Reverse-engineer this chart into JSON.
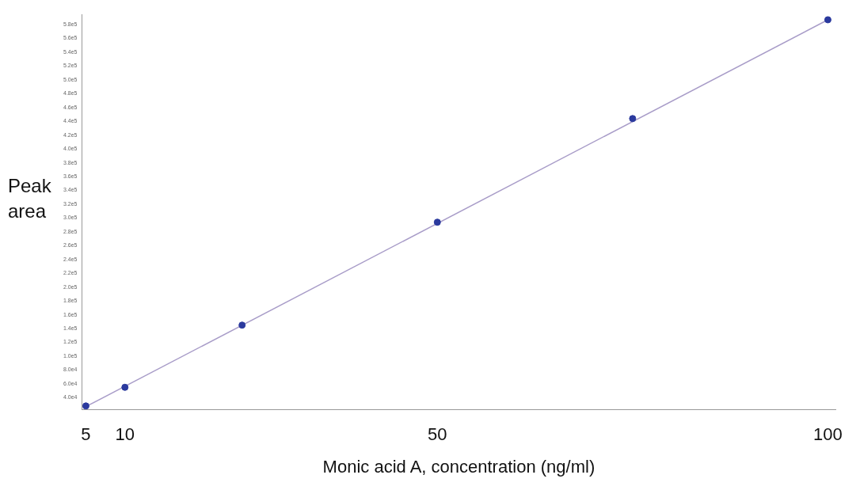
{
  "chart_data": {
    "type": "scatter",
    "xlabel": "Monic acid A, concentration (ng/ml)",
    "ylabel": "Peak area",
    "x": [
      5,
      10,
      25,
      50,
      75,
      100
    ],
    "series": [
      {
        "type": "scatter",
        "marker": "circle",
        "color": "#2b3a9e",
        "values": [
          28000,
          55000,
          145000,
          294000,
          444000,
          587000
        ]
      },
      {
        "type": "line",
        "marker": "none",
        "color": "#a89cc8",
        "x": [
          5,
          100
        ],
        "values": [
          27000,
          587000
        ]
      }
    ],
    "xlim": [
      4.5,
      101
    ],
    "ylim": [
      23000,
      595000
    ],
    "xticks": [
      5,
      10,
      50,
      100
    ],
    "yticks": [
      {
        "value": 40000,
        "label": "4.0e4"
      },
      {
        "value": 60000,
        "label": "6.0e4"
      },
      {
        "value": 80000,
        "label": "8.0e4"
      },
      {
        "value": 100000,
        "label": "1.0e5"
      },
      {
        "value": 120000,
        "label": "1.2e5"
      },
      {
        "value": 140000,
        "label": "1.4e5"
      },
      {
        "value": 160000,
        "label": "1.6e5"
      },
      {
        "value": 180000,
        "label": "1.8e5"
      },
      {
        "value": 200000,
        "label": "2.0e5"
      },
      {
        "value": 220000,
        "label": "2.2e5"
      },
      {
        "value": 240000,
        "label": "2.4e5"
      },
      {
        "value": 260000,
        "label": "2.6e5"
      },
      {
        "value": 280000,
        "label": "2.8e5"
      },
      {
        "value": 300000,
        "label": "3.0e5"
      },
      {
        "value": 320000,
        "label": "3.2e5"
      },
      {
        "value": 340000,
        "label": "3.4e5"
      },
      {
        "value": 360000,
        "label": "3.6e5"
      },
      {
        "value": 380000,
        "label": "3.8e5"
      },
      {
        "value": 400000,
        "label": "4.0e5"
      },
      {
        "value": 420000,
        "label": "4.2e5"
      },
      {
        "value": 440000,
        "label": "4.4e5"
      },
      {
        "value": 460000,
        "label": "4.6e5"
      },
      {
        "value": 480000,
        "label": "4.8e5"
      },
      {
        "value": 500000,
        "label": "5.0e5"
      },
      {
        "value": 520000,
        "label": "5.2e5"
      },
      {
        "value": 540000,
        "label": "5.4e5"
      },
      {
        "value": 560000,
        "label": "5.6e5"
      },
      {
        "value": 580000,
        "label": "5.8e5"
      }
    ],
    "grid": false,
    "legend": false
  }
}
